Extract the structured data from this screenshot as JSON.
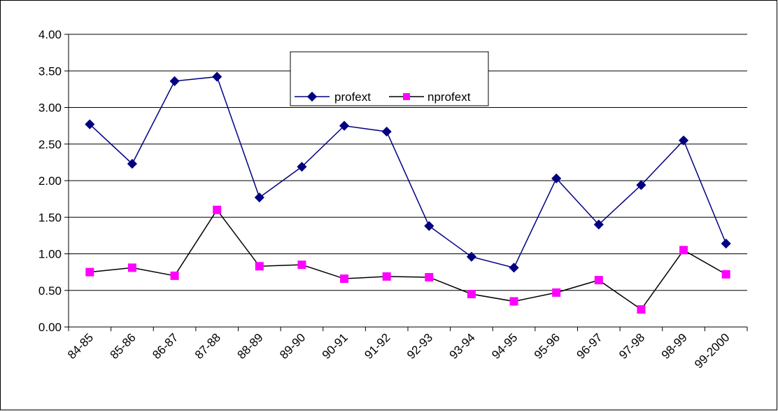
{
  "chart_data": {
    "type": "line",
    "categories": [
      "84-85",
      "85-86",
      "86-87",
      "87-88",
      "88-89",
      "89-90",
      "90-91",
      "91-92",
      "92-93",
      "93-94",
      "94-95",
      "95-96",
      "96-97",
      "97-98",
      "98-99",
      "99-2000"
    ],
    "y_ticks": [
      "0.00",
      "0.50",
      "1.00",
      "1.50",
      "2.00",
      "2.50",
      "3.00",
      "3.50",
      "4.00"
    ],
    "ylim": [
      0,
      4
    ],
    "grid": true,
    "legend_position": "top-center",
    "series": [
      {
        "name": "profext",
        "color": "#000080",
        "marker": "diamond",
        "values": [
          2.77,
          2.23,
          3.36,
          3.42,
          1.77,
          2.19,
          2.75,
          2.67,
          1.38,
          0.96,
          0.81,
          2.03,
          1.4,
          1.94,
          2.55,
          1.14
        ]
      },
      {
        "name": "nprofext",
        "color": "#000000",
        "marker_color": "#ff00ff",
        "marker": "square",
        "values": [
          0.75,
          0.81,
          0.7,
          1.6,
          0.83,
          0.85,
          0.66,
          0.69,
          0.68,
          0.45,
          0.35,
          0.47,
          0.64,
          0.24,
          1.05,
          0.72
        ]
      }
    ]
  }
}
